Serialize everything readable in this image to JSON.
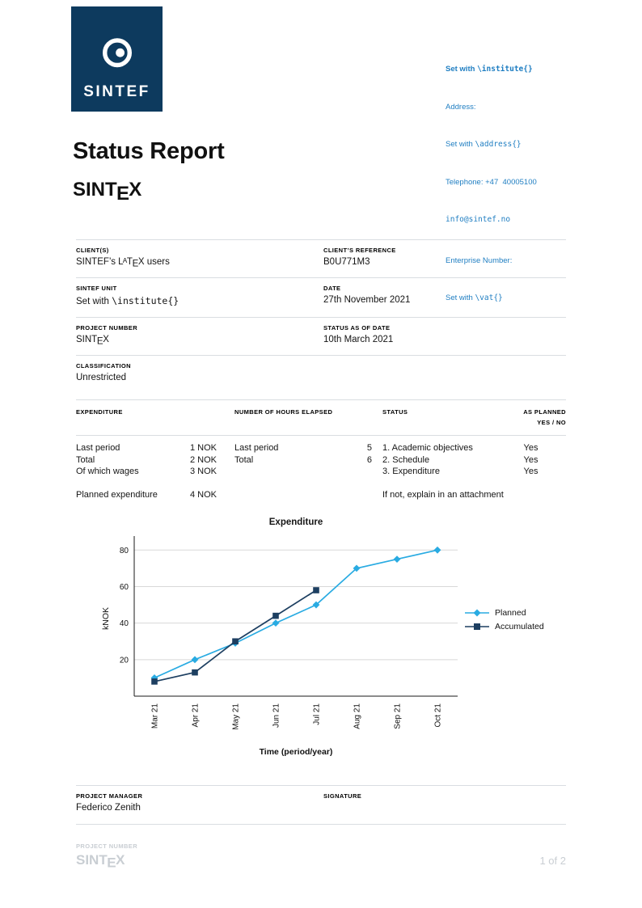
{
  "colors": {
    "navy": "#0d3a5e",
    "link_blue": "#1f7ec2",
    "rule_gray": "#d9dde1",
    "ghost_gray": "#c9ced3"
  },
  "header": {
    "logo_text": "SINTEF",
    "contact": {
      "institute_pre": "Set with ",
      "institute_code": "\\institute{}",
      "address_label": "Address:",
      "address_pre": "Set with ",
      "address_code": "\\address{}",
      "telephone": "Telephone: +47  40005100",
      "email": "info@sintef.no",
      "enterprise_label": "Enterprise Number:",
      "vat_pre": "Set with ",
      "vat_code": "\\vat{}"
    }
  },
  "title": "Status Report",
  "wordmark": {
    "pre": "SINT",
    "sub": "E",
    "post": "X"
  },
  "info": {
    "client_label": "CLIENT(S)",
    "client_value_pre": "SINTEF’s L",
    "client_value_sup": "A",
    "client_value_mid": "T",
    "client_value_sub": "E",
    "client_value_end": "X",
    "client_value_post": " users",
    "client_ref_label": "CLIENT’S REFERENCE",
    "client_ref_value": "B0U771M3",
    "unit_label": "SINTEF UNIT",
    "unit_value_pre": "Set with ",
    "unit_value_code": "\\institute{}",
    "date_label": "DATE",
    "date_value": "27th November 2021",
    "project_label": "PROJECT NUMBER",
    "status_date_label": "STATUS AS OF DATE",
    "status_date_value": "10th March 2021",
    "classification_label": "CLASSIFICATION",
    "classification_value": "Unrestricted"
  },
  "worktable": {
    "expenditure_header": "EXPENDITURE",
    "hours_header": "NUMBER OF HOURS ELAPSED",
    "status_header": "STATUS",
    "planned_header_line1": "AS PLANNED",
    "planned_header_line2": "YES / NO",
    "expenditure_rows": [
      {
        "label": "Last period",
        "value": "1 NOK"
      },
      {
        "label": "Total",
        "value": "2 NOK"
      },
      {
        "label": "Of which wages",
        "value": "3 NOK"
      }
    ],
    "planned_expenditure": {
      "label": "Planned expenditure",
      "value": "4 NOK"
    },
    "hours_rows": [
      {
        "label": "Last period",
        "value": "5"
      },
      {
        "label": "Total",
        "value": "6"
      }
    ],
    "status_rows": [
      {
        "label": "1. Academic objectives",
        "value": "Yes"
      },
      {
        "label": "2. Schedule",
        "value": "Yes"
      },
      {
        "label": "3. Expenditure",
        "value": "Yes"
      }
    ],
    "status_note": "If not, explain in an attachment"
  },
  "chart_data": {
    "type": "line",
    "title": "Expenditure",
    "xlabel": "Time (period/year)",
    "ylabel": "kNOK",
    "categories": [
      "Mar 21",
      "Apr 21",
      "May 21",
      "Jun 21",
      "Jul 21",
      "Aug 21",
      "Sep 21",
      "Oct 21"
    ],
    "ylim": [
      0,
      85
    ],
    "yticks": [
      20,
      40,
      60,
      80
    ],
    "grid": true,
    "legend_position": "right",
    "series": [
      {
        "name": "Planned",
        "marker": "diamond",
        "color": "#29abe2",
        "values": [
          10,
          20,
          29,
          40,
          50,
          70,
          75,
          80
        ]
      },
      {
        "name": "Accumulated",
        "marker": "square",
        "color": "#1d3f61",
        "values": [
          8,
          13,
          30,
          44,
          58
        ]
      }
    ]
  },
  "manager": {
    "label": "PROJECT MANAGER",
    "value": "Federico Zenith",
    "signature_label": "SIGNATURE"
  },
  "footer": {
    "project_label": "PROJECT NUMBER",
    "wordmark": {
      "pre": "SINT",
      "sub": "E",
      "post": "X"
    },
    "page_indicator": "1 of 2"
  }
}
